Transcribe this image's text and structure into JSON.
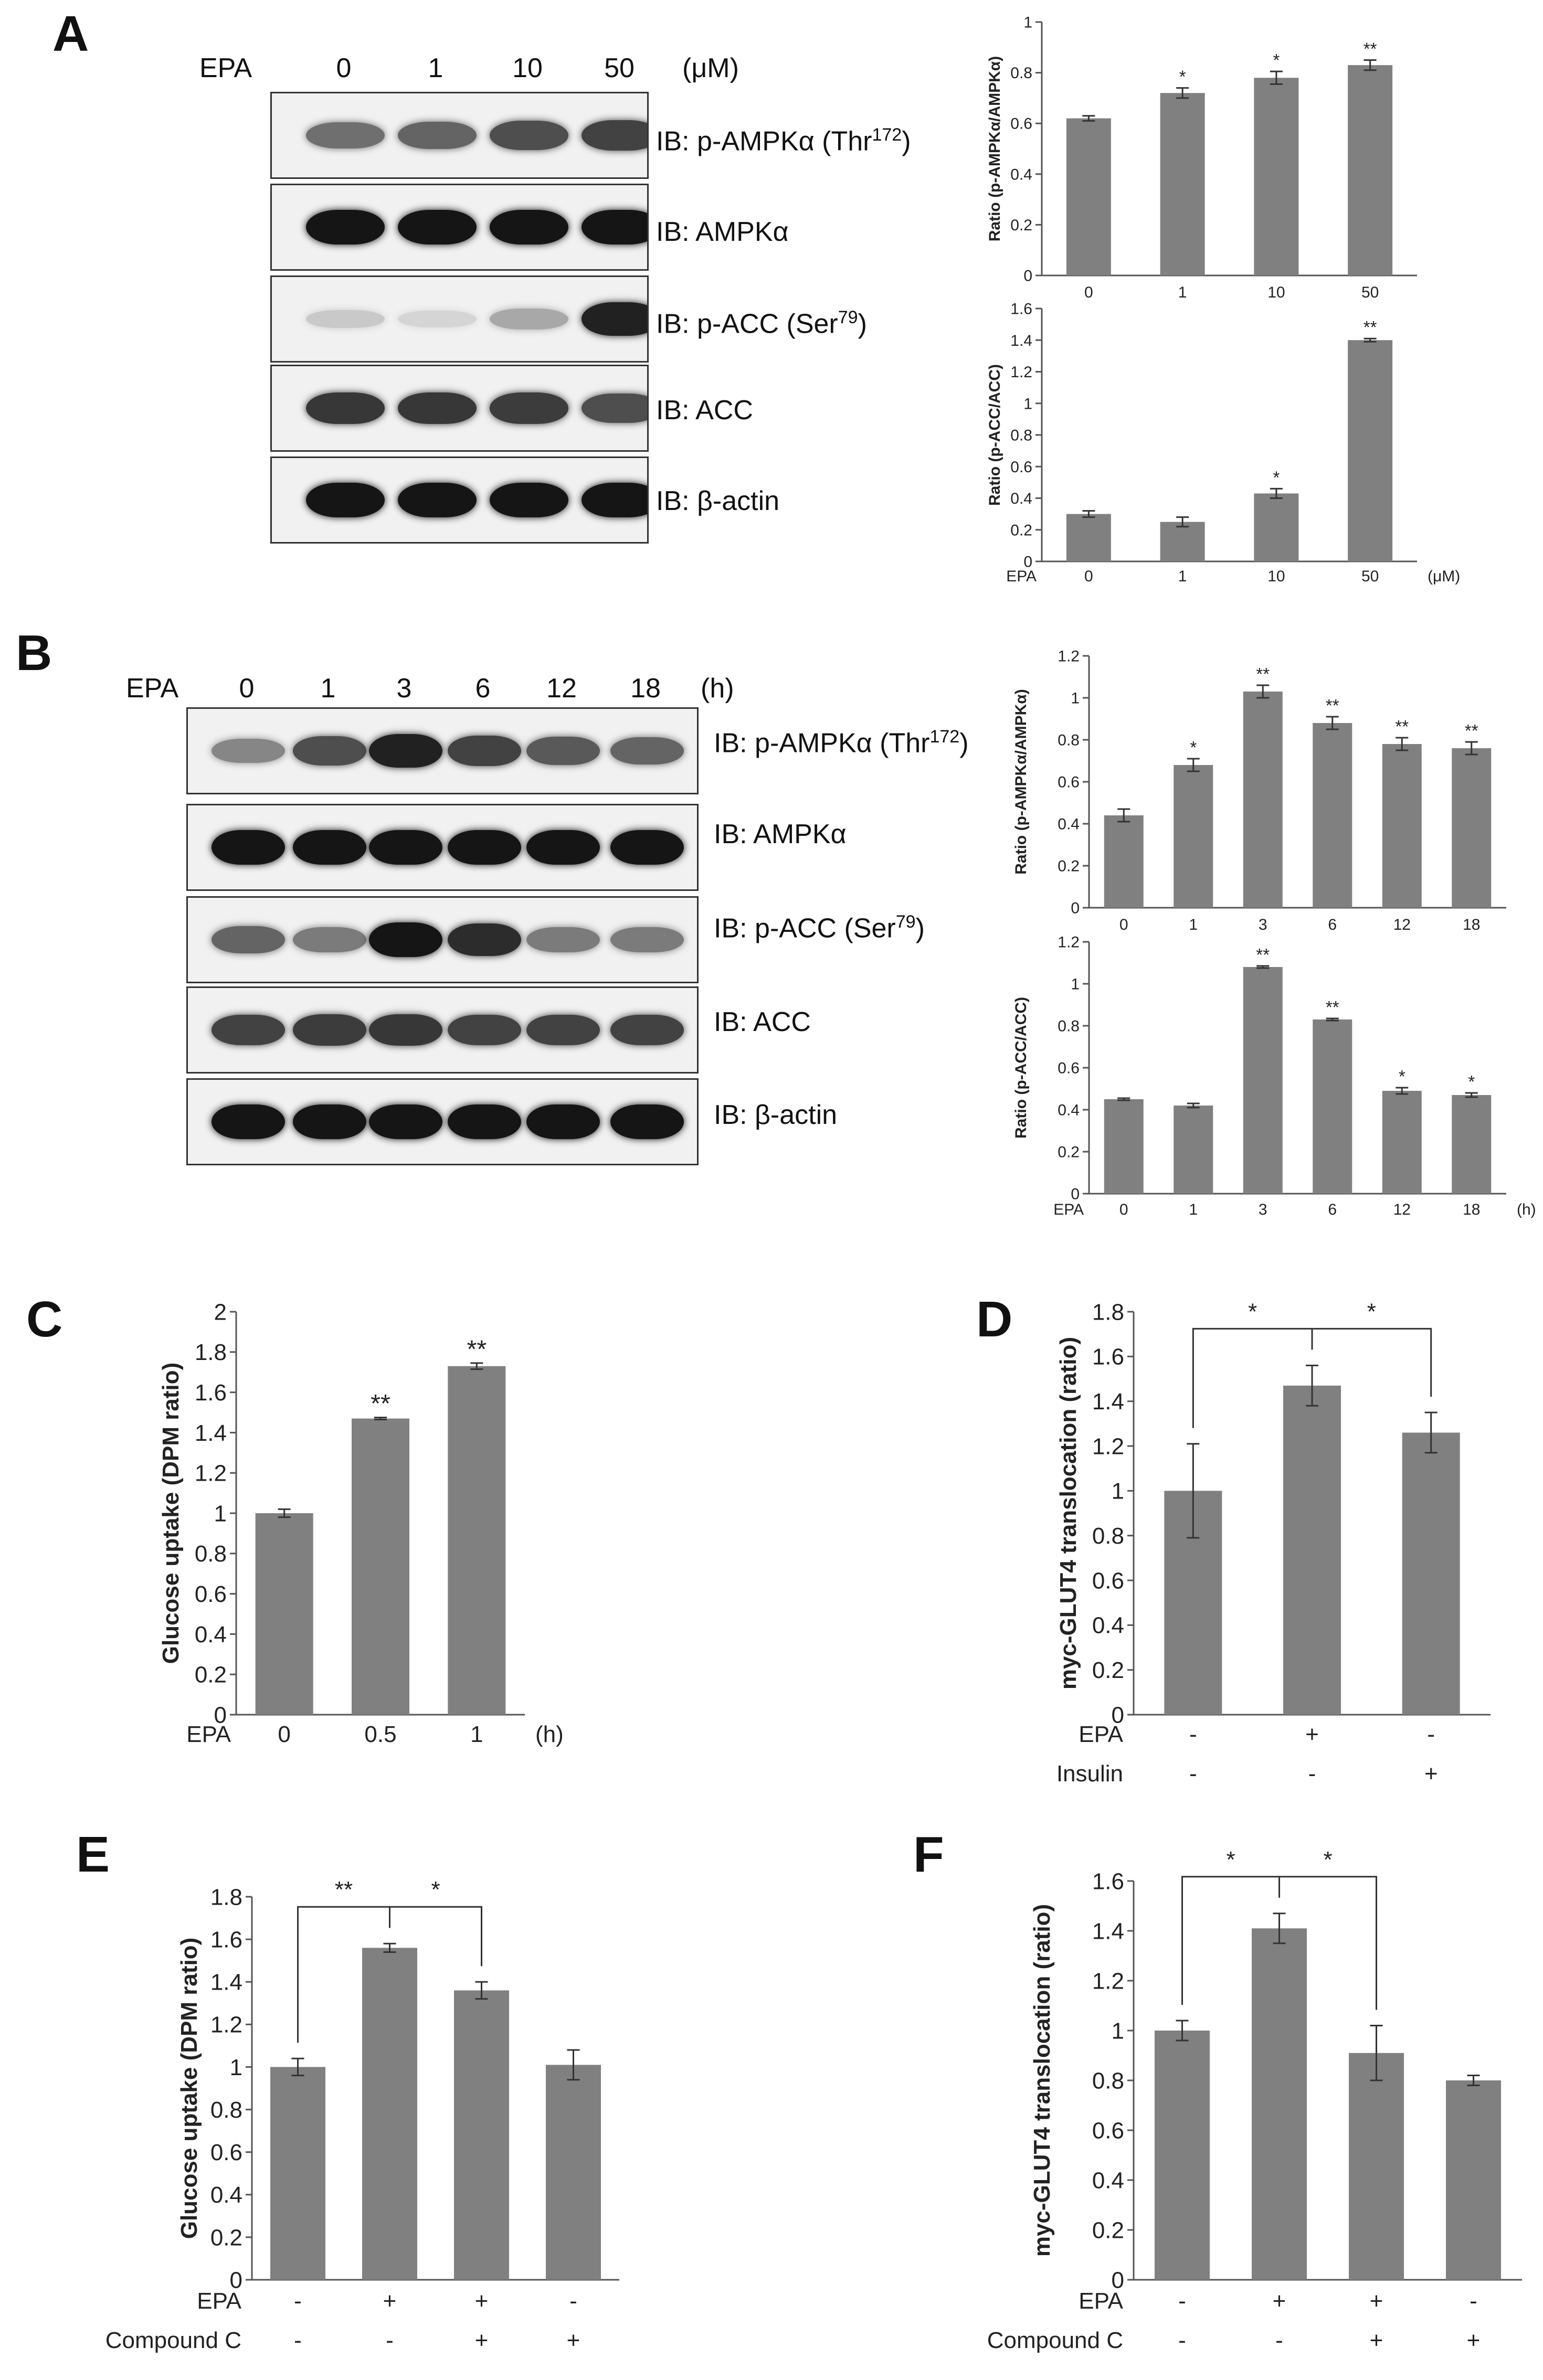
{
  "panels": [
    "A",
    "B",
    "C",
    "D",
    "E",
    "F"
  ],
  "blotA": {
    "treatment": "EPA",
    "unit": "(μM)",
    "lanes": [
      "0",
      "1",
      "10",
      "50"
    ],
    "labels": [
      {
        "prefix": "IB: p-AMPKα (Thr",
        "sup": "172",
        "suffix": ")"
      },
      {
        "prefix": "IB: AMPKα",
        "sup": "",
        "suffix": ""
      },
      {
        "prefix": "IB: p-ACC (Ser",
        "sup": "79",
        "suffix": ")"
      },
      {
        "prefix": "IB: ACC",
        "sup": "",
        "suffix": ""
      },
      {
        "prefix": "IB: β-actin",
        "sup": "",
        "suffix": ""
      }
    ],
    "intensity": [
      [
        0.55,
        0.6,
        0.7,
        0.75
      ],
      [
        0.95,
        0.95,
        0.95,
        0.95
      ],
      [
        0.15,
        0.1,
        0.3,
        0.9
      ],
      [
        0.8,
        0.8,
        0.78,
        0.7
      ],
      [
        0.95,
        0.95,
        0.95,
        0.95
      ]
    ]
  },
  "blotB": {
    "treatment": "EPA",
    "unit": "(h)",
    "lanes": [
      "0",
      "1",
      "3",
      "6",
      "12",
      "18"
    ],
    "labels": [
      {
        "prefix": "IB: p-AMPKα (Thr",
        "sup": "172",
        "suffix": ")"
      },
      {
        "prefix": "IB: AMPKα",
        "sup": "",
        "suffix": ""
      },
      {
        "prefix": "IB: p-ACC (Ser",
        "sup": "79",
        "suffix": ")"
      },
      {
        "prefix": "IB: ACC",
        "sup": "",
        "suffix": ""
      },
      {
        "prefix": "IB: β-actin",
        "sup": "",
        "suffix": ""
      }
    ],
    "intensity": [
      [
        0.45,
        0.7,
        0.9,
        0.75,
        0.65,
        0.6
      ],
      [
        0.95,
        0.95,
        0.95,
        0.95,
        0.95,
        0.95
      ],
      [
        0.6,
        0.5,
        0.95,
        0.85,
        0.5,
        0.5
      ],
      [
        0.75,
        0.78,
        0.8,
        0.75,
        0.75,
        0.75
      ],
      [
        0.95,
        0.95,
        0.95,
        0.95,
        0.95,
        0.95
      ]
    ]
  },
  "chart_data": [
    {
      "id": "A-top",
      "type": "bar",
      "ylabel": "Ratio (p-AMPKα/AMPKα)",
      "ylim": [
        0,
        1
      ],
      "yticks": [
        "0",
        "0.2",
        "0.4",
        "0.6",
        "0.8",
        "1"
      ],
      "categories": [
        "0",
        "1",
        "10",
        "50"
      ],
      "values": [
        0.62,
        0.72,
        0.78,
        0.83
      ],
      "errors": [
        0.01,
        0.02,
        0.025,
        0.02
      ],
      "stars": [
        "",
        "*",
        "*",
        "**"
      ]
    },
    {
      "id": "A-bottom",
      "type": "bar",
      "ylabel": "Ratio (p-ACC/ACC)",
      "ylim": [
        0,
        1.6
      ],
      "yticks": [
        "0",
        "0.2",
        "0.4",
        "0.6",
        "0.8",
        "1",
        "1.2",
        "1.4",
        "1.6"
      ],
      "categories": [
        "0",
        "1",
        "10",
        "50"
      ],
      "values": [
        0.3,
        0.25,
        0.43,
        1.4
      ],
      "errors": [
        0.02,
        0.03,
        0.03,
        0.01
      ],
      "stars": [
        "",
        "",
        "*",
        "**"
      ],
      "xtitle": "EPA",
      "xunit": "(μM)"
    },
    {
      "id": "B-top",
      "type": "bar",
      "ylabel": "Ratio (p-AMPKα/AMPKα)",
      "ylim": [
        0,
        1.2
      ],
      "yticks": [
        "0",
        "0.2",
        "0.4",
        "0.6",
        "0.8",
        "1",
        "1.2"
      ],
      "categories": [
        "0",
        "1",
        "3",
        "6",
        "12",
        "18"
      ],
      "values": [
        0.44,
        0.68,
        1.03,
        0.88,
        0.78,
        0.76
      ],
      "errors": [
        0.03,
        0.03,
        0.03,
        0.03,
        0.03,
        0.03
      ],
      "stars": [
        "",
        "*",
        "**",
        "**",
        "**",
        "**"
      ]
    },
    {
      "id": "B-bottom",
      "type": "bar",
      "ylabel": "Ratio (p-ACC/ACC)",
      "ylim": [
        0,
        1.2
      ],
      "yticks": [
        "0",
        "0.2",
        "0.4",
        "0.6",
        "0.8",
        "1",
        "1.2"
      ],
      "categories": [
        "0",
        "1",
        "3",
        "6",
        "12",
        "18"
      ],
      "values": [
        0.45,
        0.42,
        1.08,
        0.83,
        0.49,
        0.47
      ],
      "errors": [
        0.005,
        0.01,
        0.005,
        0.005,
        0.015,
        0.01
      ],
      "stars": [
        "",
        "",
        "**",
        "**",
        "*",
        "*"
      ],
      "xtitle": "EPA",
      "xunit": "(h)"
    },
    {
      "id": "C",
      "type": "bar",
      "ylabel": "Glucose uptake (DPM ratio)",
      "ylim": [
        0,
        2
      ],
      "yticks": [
        "0",
        "0.2",
        "0.4",
        "0.6",
        "0.8",
        "1",
        "1.2",
        "1.4",
        "1.6",
        "1.8",
        "2"
      ],
      "categories": [
        "0",
        "0.5",
        "1"
      ],
      "values": [
        1.0,
        1.47,
        1.73
      ],
      "errors": [
        0.02,
        0.005,
        0.015
      ],
      "stars": [
        "",
        "**",
        "**"
      ],
      "xtitle": "EPA",
      "xunit": "(h)"
    },
    {
      "id": "D",
      "type": "bar",
      "ylabel": "myc-GLUT4 translocation (ratio)",
      "ylim": [
        0,
        1.8
      ],
      "yticks": [
        "0",
        "0.2",
        "0.4",
        "0.6",
        "0.8",
        "1",
        "1.2",
        "1.4",
        "1.6",
        "1.8"
      ],
      "values": [
        1.0,
        1.47,
        1.26
      ],
      "errors": [
        0.21,
        0.09,
        0.09
      ],
      "conditions": [
        {
          "name": "EPA",
          "signs": [
            "-",
            "+",
            "-"
          ]
        },
        {
          "name": "Insulin",
          "signs": [
            "-",
            "-",
            "+"
          ]
        }
      ],
      "brackets": [
        {
          "from": 0,
          "to": 1,
          "label": "*"
        },
        {
          "from": 1,
          "to": 2,
          "label": "*"
        }
      ]
    },
    {
      "id": "E",
      "type": "bar",
      "ylabel": "Glucose uptake (DPM ratio)",
      "ylim": [
        0,
        1.8
      ],
      "yticks": [
        "0",
        "0.2",
        "0.4",
        "0.6",
        "0.8",
        "1",
        "1.2",
        "1.4",
        "1.6",
        "1.8"
      ],
      "values": [
        1.0,
        1.56,
        1.36,
        1.01
      ],
      "errors": [
        0.04,
        0.02,
        0.04,
        0.07
      ],
      "conditions": [
        {
          "name": "EPA",
          "signs": [
            "-",
            "+",
            "+",
            "-"
          ]
        },
        {
          "name": "Compound C",
          "signs": [
            "-",
            "-",
            "+",
            "+"
          ]
        }
      ],
      "brackets": [
        {
          "from": 0,
          "to": 1,
          "label": "**"
        },
        {
          "from": 1,
          "to": 2,
          "label": "*"
        }
      ]
    },
    {
      "id": "F",
      "type": "bar",
      "ylabel": "myc-GLUT4 translocation (ratio)",
      "ylim": [
        0,
        1.6
      ],
      "yticks": [
        "0",
        "0.2",
        "0.4",
        "0.6",
        "0.8",
        "1",
        "1.2",
        "1.4",
        "1.6"
      ],
      "values": [
        1.0,
        1.41,
        0.91,
        0.8
      ],
      "errors": [
        0.04,
        0.06,
        0.11,
        0.02
      ],
      "conditions": [
        {
          "name": "EPA",
          "signs": [
            "-",
            "+",
            "+",
            "-"
          ]
        },
        {
          "name": "Compound C",
          "signs": [
            "-",
            "-",
            "+",
            "+"
          ]
        }
      ],
      "brackets": [
        {
          "from": 0,
          "to": 1,
          "label": "*"
        },
        {
          "from": 1,
          "to": 2,
          "label": "*"
        }
      ]
    }
  ]
}
